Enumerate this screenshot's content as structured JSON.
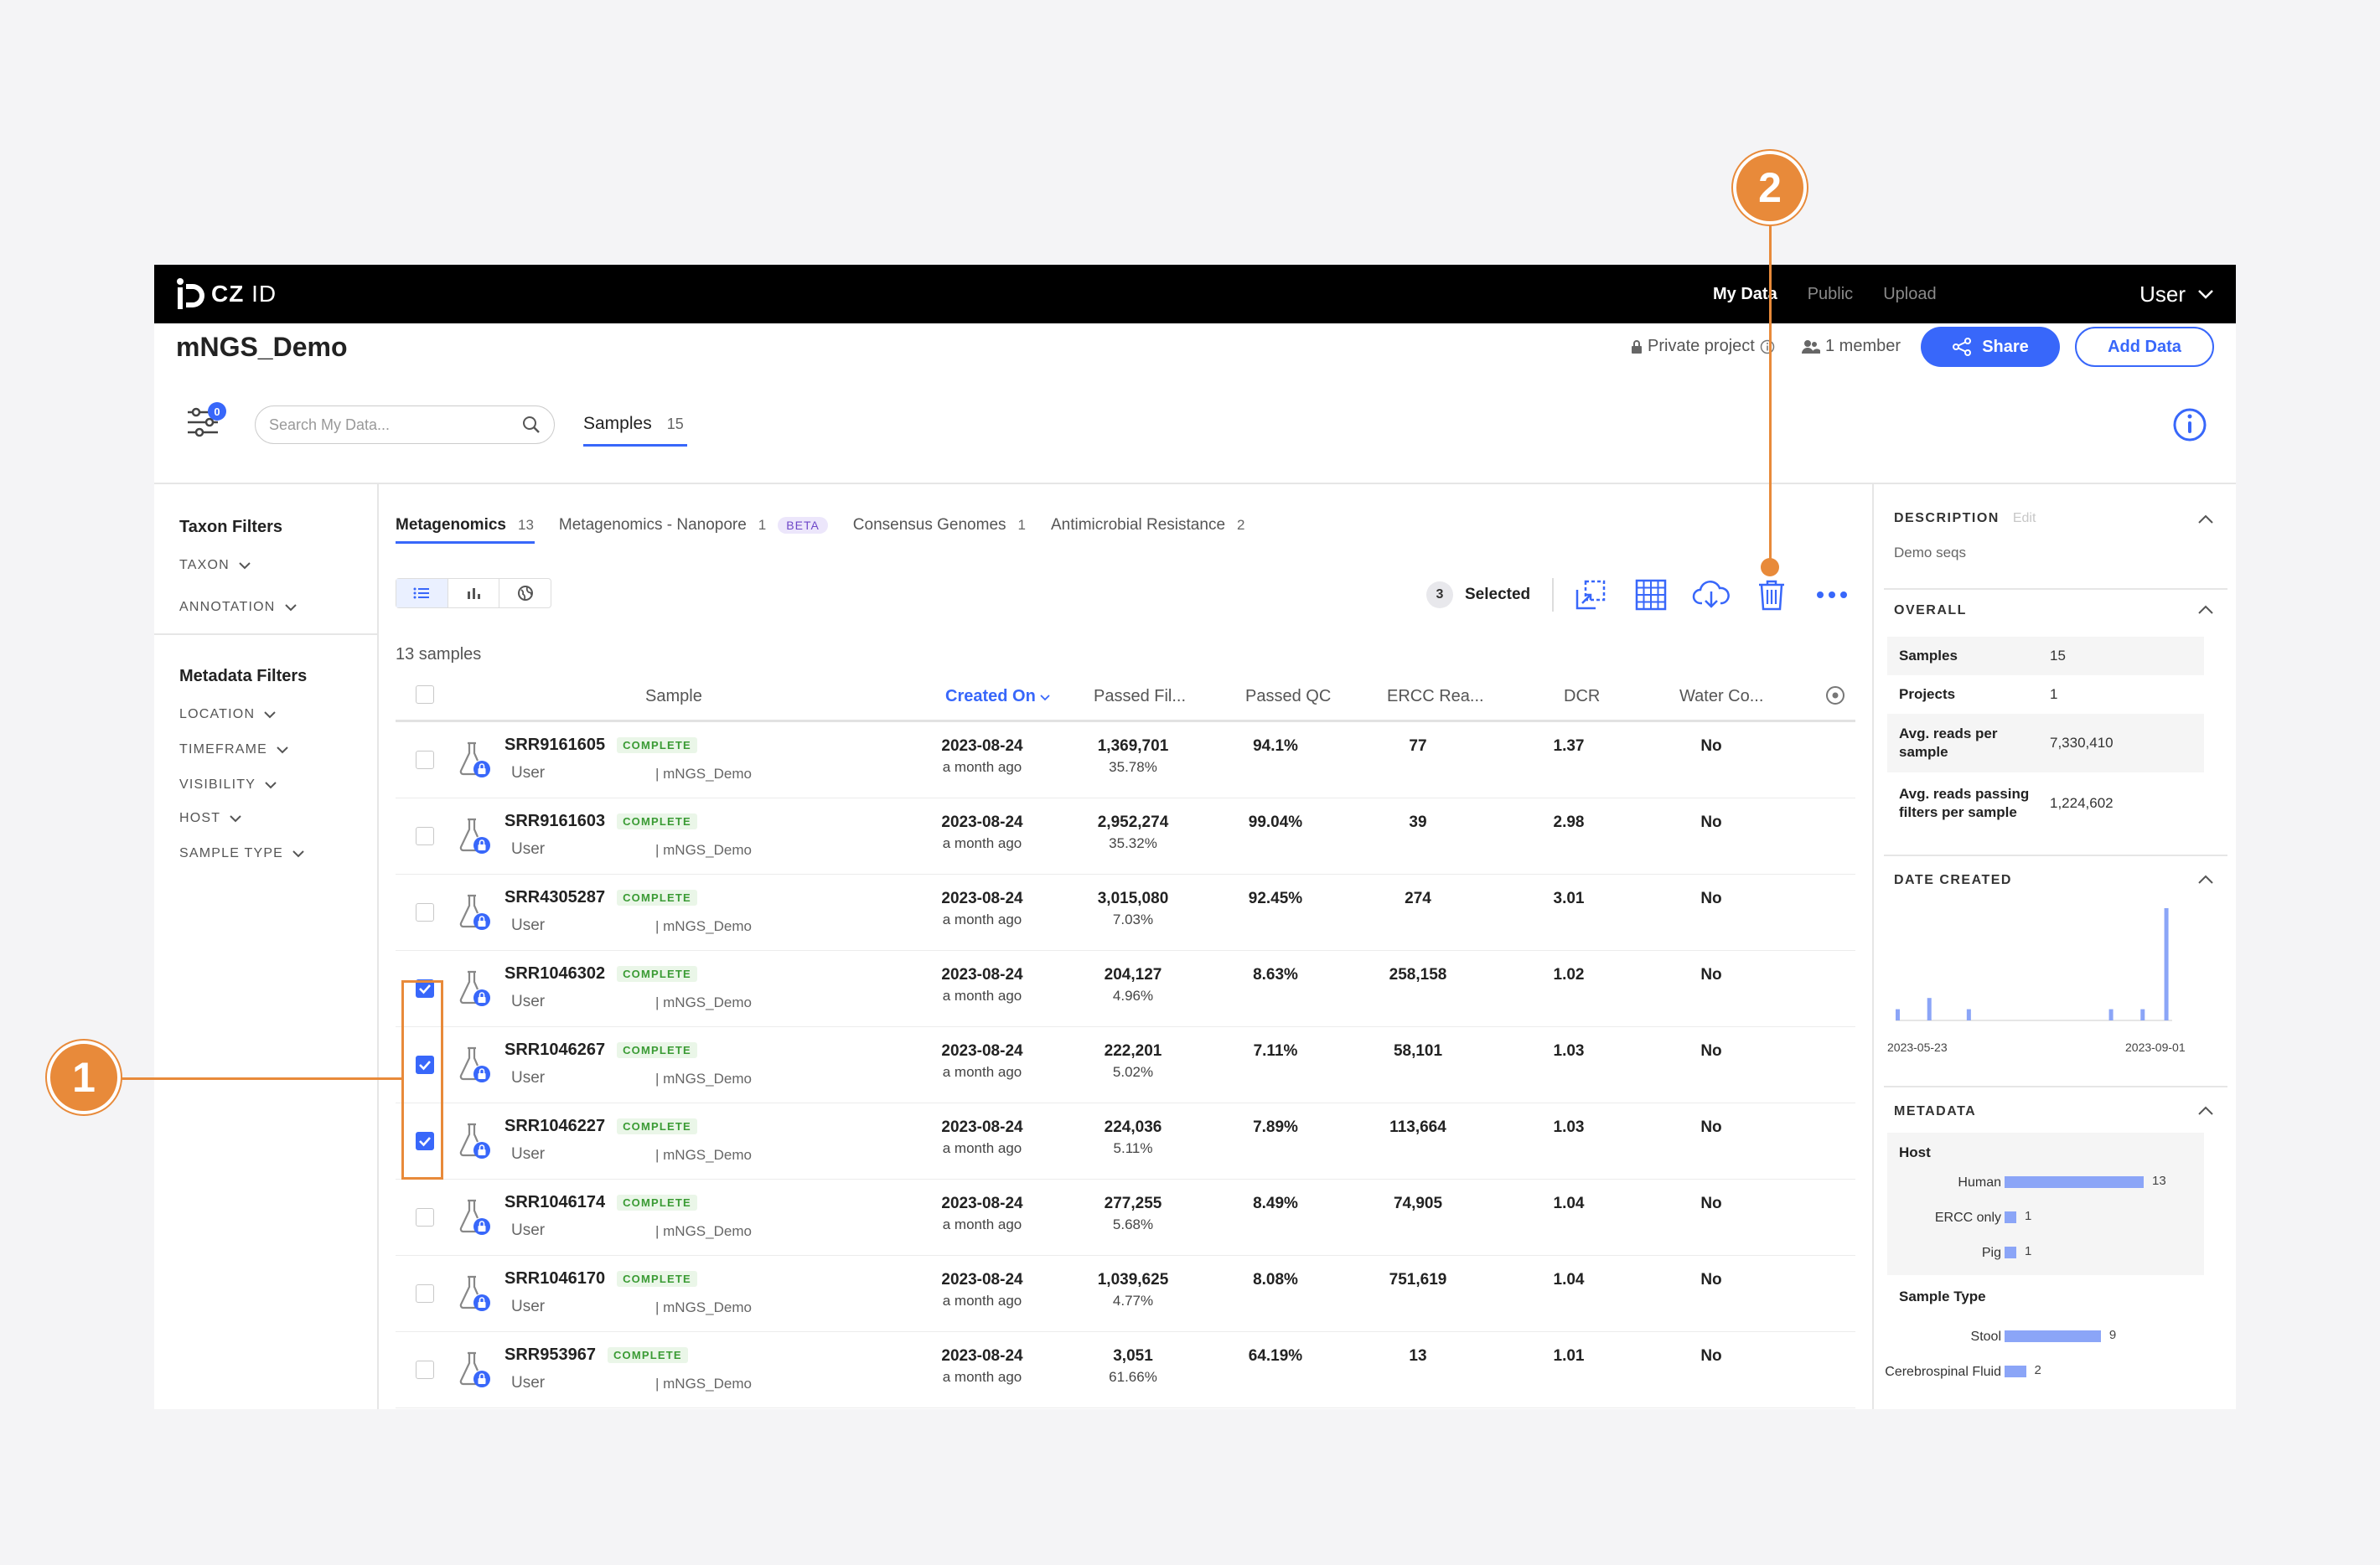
{
  "nav": {
    "logo_text_bold": "CZ",
    "logo_text_light": "ID",
    "links": [
      {
        "label": "My Data"
      },
      {
        "label": "Public"
      },
      {
        "label": "Upload"
      }
    ],
    "user_label": "User"
  },
  "project": {
    "title": "mNGS_Demo",
    "privacy": "Private project",
    "members": "1 member",
    "share_label": "Share",
    "add_data_label": "Add Data"
  },
  "toolbar": {
    "filter_count": "0",
    "search_placeholder": "Search My Data...",
    "samples_tab_label": "Samples",
    "samples_tab_count": "15"
  },
  "sidebar": {
    "taxon_title": "Taxon Filters",
    "taxon_items": [
      "TAXON",
      "ANNOTATION"
    ],
    "metadata_title": "Metadata Filters",
    "metadata_items": [
      "LOCATION",
      "TIMEFRAME",
      "VISIBILITY",
      "HOST",
      "SAMPLE TYPE"
    ]
  },
  "workflow_tabs": [
    {
      "label": "Metagenomics",
      "count": "13"
    },
    {
      "label": "Metagenomics - Nanopore",
      "count": "1",
      "badge": "BETA"
    },
    {
      "label": "Consensus Genomes",
      "count": "1"
    },
    {
      "label": "Antimicrobial Resistance",
      "count": "2"
    }
  ],
  "selection": {
    "count": "3",
    "label": "Selected"
  },
  "table": {
    "sample_count": "13 samples",
    "headers": {
      "sample": "Sample",
      "created": "Created On",
      "passed_filters": "Passed Fil...",
      "passed_qc": "Passed QC",
      "ercc": "ERCC Rea...",
      "dcr": "DCR",
      "water": "Water Co..."
    },
    "rows": [
      {
        "name": "SRR9161605",
        "status": "COMPLETE",
        "user": "User",
        "project": "| mNGS_Demo",
        "date": "2023-08-24",
        "ago": "a month ago",
        "pf": "1,369,701",
        "pf_pct": "35.78%",
        "qc": "94.1%",
        "ercc": "77",
        "dcr": "1.37",
        "water": "No",
        "checked": false
      },
      {
        "name": "SRR9161603",
        "status": "COMPLETE",
        "user": "User",
        "project": "| mNGS_Demo",
        "date": "2023-08-24",
        "ago": "a month ago",
        "pf": "2,952,274",
        "pf_pct": "35.32%",
        "qc": "99.04%",
        "ercc": "39",
        "dcr": "2.98",
        "water": "No",
        "checked": false
      },
      {
        "name": "SRR4305287",
        "status": "COMPLETE",
        "user": "User",
        "project": "| mNGS_Demo",
        "date": "2023-08-24",
        "ago": "a month ago",
        "pf": "3,015,080",
        "pf_pct": "7.03%",
        "qc": "92.45%",
        "ercc": "274",
        "dcr": "3.01",
        "water": "No",
        "checked": false
      },
      {
        "name": "SRR1046302",
        "status": "COMPLETE",
        "user": "User",
        "project": "| mNGS_Demo",
        "date": "2023-08-24",
        "ago": "a month ago",
        "pf": "204,127",
        "pf_pct": "4.96%",
        "qc": "8.63%",
        "ercc": "258,158",
        "dcr": "1.02",
        "water": "No",
        "checked": true
      },
      {
        "name": "SRR1046267",
        "status": "COMPLETE",
        "user": "User",
        "project": "| mNGS_Demo",
        "date": "2023-08-24",
        "ago": "a month ago",
        "pf": "222,201",
        "pf_pct": "5.02%",
        "qc": "7.11%",
        "ercc": "58,101",
        "dcr": "1.03",
        "water": "No",
        "checked": true
      },
      {
        "name": "SRR1046227",
        "status": "COMPLETE",
        "user": "User",
        "project": "| mNGS_Demo",
        "date": "2023-08-24",
        "ago": "a month ago",
        "pf": "224,036",
        "pf_pct": "5.11%",
        "qc": "7.89%",
        "ercc": "113,664",
        "dcr": "1.03",
        "water": "No",
        "checked": true
      },
      {
        "name": "SRR1046174",
        "status": "COMPLETE",
        "user": "User",
        "project": "| mNGS_Demo",
        "date": "2023-08-24",
        "ago": "a month ago",
        "pf": "277,255",
        "pf_pct": "5.68%",
        "qc": "8.49%",
        "ercc": "74,905",
        "dcr": "1.04",
        "water": "No",
        "checked": false
      },
      {
        "name": "SRR1046170",
        "status": "COMPLETE",
        "user": "User",
        "project": "| mNGS_Demo",
        "date": "2023-08-24",
        "ago": "a month ago",
        "pf": "1,039,625",
        "pf_pct": "4.77%",
        "qc": "8.08%",
        "ercc": "751,619",
        "dcr": "1.04",
        "water": "No",
        "checked": false
      },
      {
        "name": "SRR953967",
        "status": "COMPLETE",
        "user": "User",
        "project": "| mNGS_Demo",
        "date": "2023-08-24",
        "ago": "a month ago",
        "pf": "3,051",
        "pf_pct": "61.66%",
        "qc": "64.19%",
        "ercc": "13",
        "dcr": "1.01",
        "water": "No",
        "checked": false
      }
    ]
  },
  "right_panel": {
    "description_title": "DESCRIPTION",
    "edit_label": "Edit",
    "description_text": "Demo seqs",
    "overall_title": "OVERALL",
    "stats": [
      {
        "key": "Samples",
        "value": "15"
      },
      {
        "key": "Projects",
        "value": "1"
      },
      {
        "key": "Avg. reads per sample",
        "value": "7,330,410"
      },
      {
        "key": "Avg. reads passing filters per sample",
        "value": "1,224,602"
      }
    ],
    "date_title": "DATE CREATED",
    "date_start": "2023-05-23",
    "date_end": "2023-09-01",
    "date_histogram": [
      1,
      0,
      0,
      0,
      2,
      0,
      0,
      0,
      0,
      1,
      0,
      0,
      0,
      0,
      0,
      0,
      0,
      0,
      0,
      0,
      0,
      0,
      0,
      0,
      0,
      0,
      0,
      1,
      0,
      0,
      0,
      1,
      0,
      0,
      10
    ],
    "metadata_title": "METADATA",
    "host_title": "Host",
    "host": [
      {
        "label": "Human",
        "value": 13
      },
      {
        "label": "ERCC only",
        "value": 1
      },
      {
        "label": "Pig",
        "value": 1
      }
    ],
    "sample_type_title": "Sample Type",
    "sample_type": [
      {
        "label": "Stool",
        "value": 9
      },
      {
        "label": "Cerebrospinal Fluid",
        "value": 2
      }
    ]
  },
  "callouts": {
    "one": "1",
    "two": "2"
  },
  "colors": {
    "accent": "#3867fa",
    "callout": "#e88a3a",
    "complete": "#3a9b34"
  }
}
